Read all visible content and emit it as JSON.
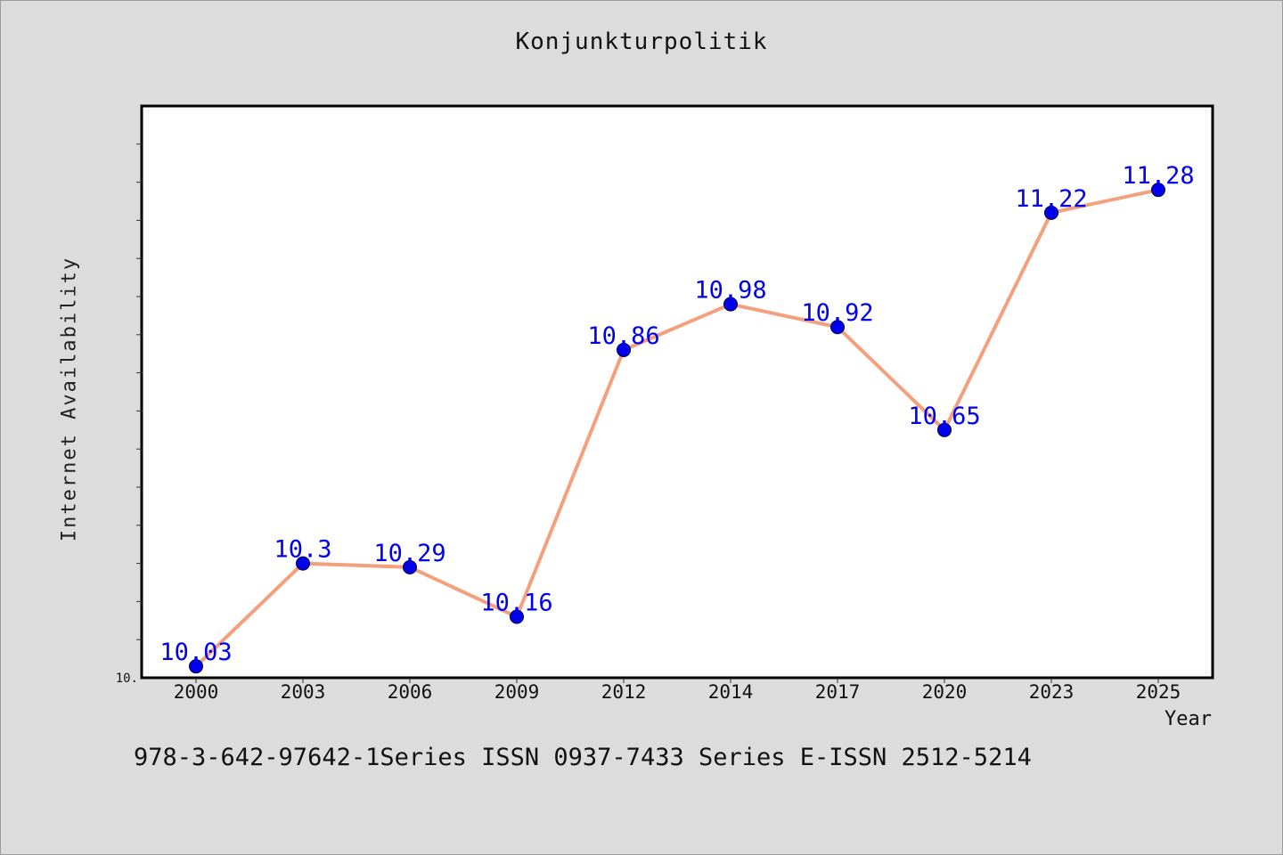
{
  "chart_data": {
    "type": "line",
    "title": "Konjunkturpolitik",
    "xlabel": "Year",
    "ylabel": "Internet Availability",
    "categories": [
      "2000",
      "2003",
      "2006",
      "2009",
      "2012",
      "2014",
      "2017",
      "2020",
      "2023",
      "2025"
    ],
    "series": [
      {
        "values": [
          10.03,
          10.3,
          10.29,
          10.16,
          10.86,
          10.98,
          10.92,
          10.65,
          11.22,
          11.28
        ],
        "labels": [
          "10.03",
          "10.3",
          "10.29",
          "10.16",
          "10.86",
          "10.98",
          "10.92",
          "10.65",
          "11.22",
          "11.28"
        ]
      }
    ],
    "ytick_labels": [
      "10."
    ],
    "ylim": [
      10.0,
      11.5
    ],
    "grid": false,
    "colors": {
      "line": "#f4a07c",
      "marker": "#0000ee",
      "data_label": "#0000ee"
    }
  },
  "footer": {
    "note": "978-3-642-97642-1Series ISSN 0937-7433 Series E-ISSN 2512-5214"
  }
}
